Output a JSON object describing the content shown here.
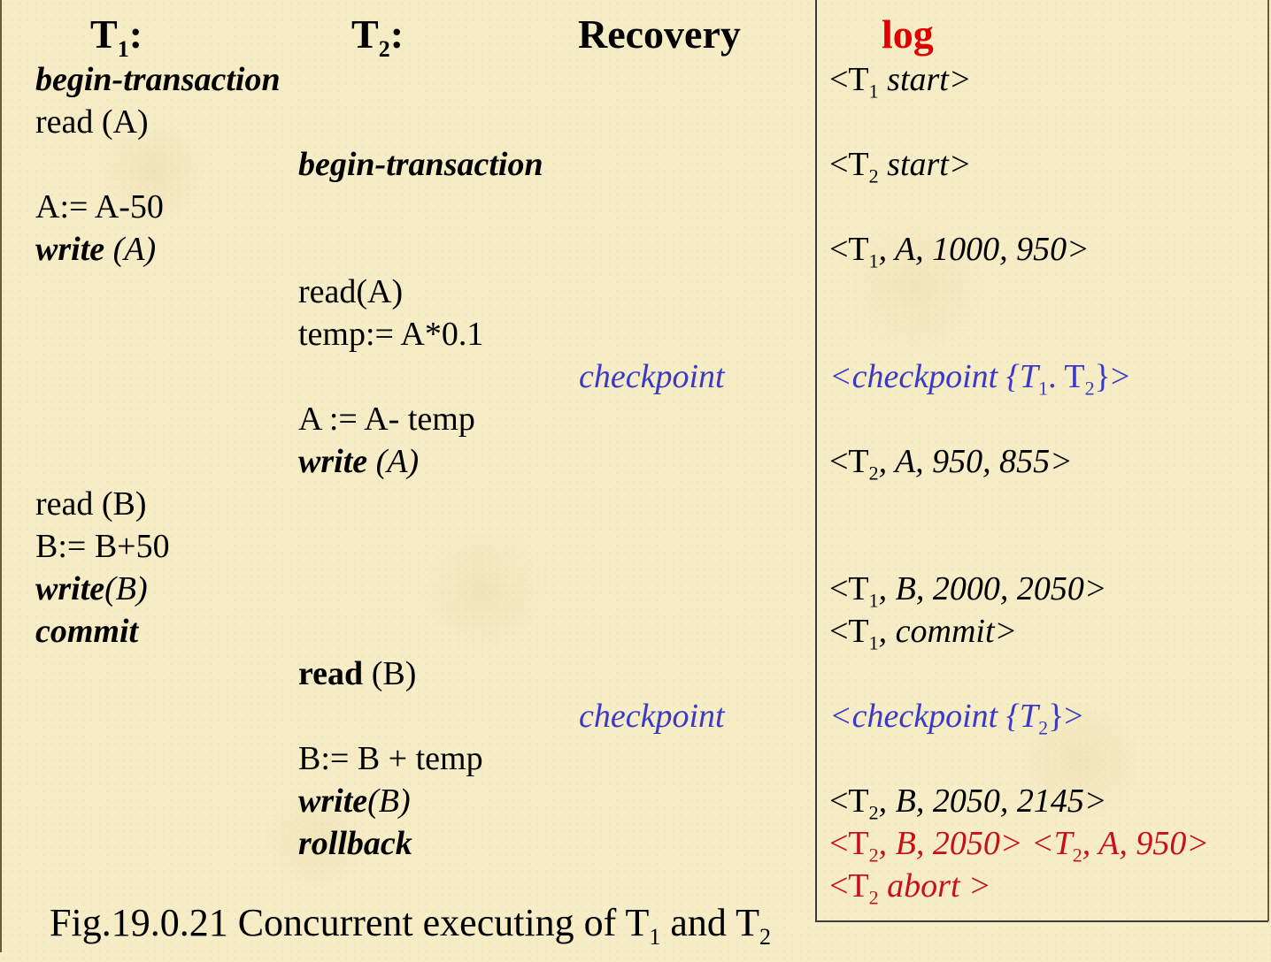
{
  "headers": {
    "t1": {
      "main": "T",
      "sub": "1",
      "suffix": ":"
    },
    "t2": {
      "main": "T",
      "sub": "2",
      "suffix": ":"
    },
    "recovery": "Recovery",
    "log": "log"
  },
  "t1_column": {
    "begin": "begin-transaction",
    "read_a": "read (A)",
    "assign_a": "A:= A-50",
    "write_a_kw": "write",
    "write_a_arg": " (A)",
    "read_b": "read (B)",
    "assign_b": "B:= B+50",
    "write_b_kw": "write",
    "write_b_arg": "(B)",
    "commit": "commit"
  },
  "t2_column": {
    "begin": "begin-transaction",
    "read_a": "read(A)",
    "temp": "temp:= A*0.1",
    "assign_a": "A := A- temp",
    "write_a_kw": "write",
    "write_a_arg": " (A)",
    "read_b_kw": "read",
    "read_b_arg": " (B)",
    "assign_b": "B:= B + temp",
    "write_b_kw": "write",
    "write_b_arg": "(B)",
    "rollback": "rollback"
  },
  "recovery_column": {
    "checkpoint_1": "checkpoint",
    "checkpoint_2": "checkpoint"
  },
  "log_column": {
    "t1_start": {
      "open": "<T",
      "sub": "1",
      "rest": " start>"
    },
    "t2_start": {
      "open": "<T",
      "sub": "2",
      "rest": " start>"
    },
    "t1_write_a": {
      "open": "<T",
      "sub": "1",
      "rest": ", A, 1000, 950>"
    },
    "checkpoint_1": {
      "a": "<checkpoint {T",
      "sub1": "1",
      "b": ". T",
      "sub2": "2",
      "c": "}>"
    },
    "t2_write_a": {
      "open": "<T",
      "sub": "2",
      "rest": ", A, 950, 855>"
    },
    "t1_write_b": {
      "open": "<T",
      "sub": "1",
      "rest": ", B, 2000, 2050>"
    },
    "t1_commit": {
      "open": "<T",
      "sub": "1",
      "rest": ", commit>"
    },
    "checkpoint_2": {
      "a": "<checkpoint {T",
      "sub1": "2",
      "c": "}>"
    },
    "t2_write_b": {
      "open": "<T",
      "sub": "2",
      "rest": ", B, 2050, 2145>"
    },
    "undo_records": {
      "a": "<T",
      "sub1": "2",
      "b": ", B, 2050> <T",
      "sub2": "2",
      "c": ", A, 950>"
    },
    "t2_abort": {
      "open": "<T",
      "sub": "2",
      "rest": " abort >"
    }
  },
  "caption": {
    "a": "Fig.19.0.21 Concurrent executing of T",
    "sub1": "1",
    "b": " and T",
    "sub2": "2"
  },
  "colors": {
    "log_header": "#e00000",
    "checkpoint_blue": "#3a3ac8",
    "undo_red": "#c8101a",
    "background": "#f6ecc6"
  }
}
